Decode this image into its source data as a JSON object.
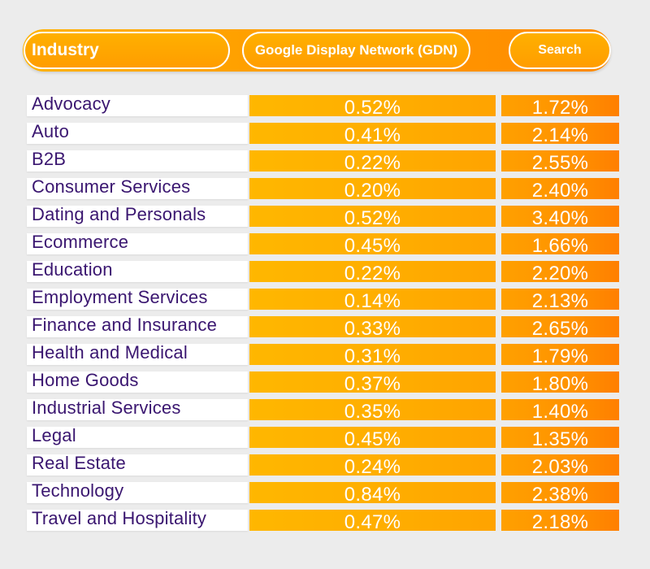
{
  "header": {
    "industry_label": "Industry",
    "gdn_label": "Google Display Network (GDN)",
    "search_label": "Search"
  },
  "colors": {
    "industry_text": "#3a1670",
    "accent_orange": "#ffa500",
    "accent_deep_orange": "#ff7f00",
    "background": "#ececec"
  },
  "rows": [
    {
      "industry": "Advocacy",
      "gdn": "0.52%",
      "search": "1.72%"
    },
    {
      "industry": "Auto",
      "gdn": "0.41%",
      "search": "2.14%"
    },
    {
      "industry": "B2B",
      "gdn": "0.22%",
      "search": "2.55%"
    },
    {
      "industry": "Consumer Services",
      "gdn": "0.20%",
      "search": "2.40%"
    },
    {
      "industry": "Dating and Personals",
      "gdn": "0.52%",
      "search": "3.40%"
    },
    {
      "industry": "Ecommerce",
      "gdn": "0.45%",
      "search": "1.66%"
    },
    {
      "industry": "Education",
      "gdn": "0.22%",
      "search": "2.20%"
    },
    {
      "industry": "Employment Services",
      "gdn": "0.14%",
      "search": "2.13%"
    },
    {
      "industry": "Finance and Insurance",
      "gdn": "0.33%",
      "search": "2.65%"
    },
    {
      "industry": "Health and Medical",
      "gdn": "0.31%",
      "search": "1.79%"
    },
    {
      "industry": "Home Goods",
      "gdn": "0.37%",
      "search": "1.80%"
    },
    {
      "industry": "Industrial Services",
      "gdn": "0.35%",
      "search": "1.40%"
    },
    {
      "industry": "Legal",
      "gdn": "0.45%",
      "search": "1.35%"
    },
    {
      "industry": "Real Estate",
      "gdn": "0.24%",
      "search": "2.03%"
    },
    {
      "industry": "Technology",
      "gdn": "0.84%",
      "search": "2.38%"
    },
    {
      "industry": "Travel and Hospitality",
      "gdn": "0.47%",
      "search": "2.18%"
    }
  ]
}
